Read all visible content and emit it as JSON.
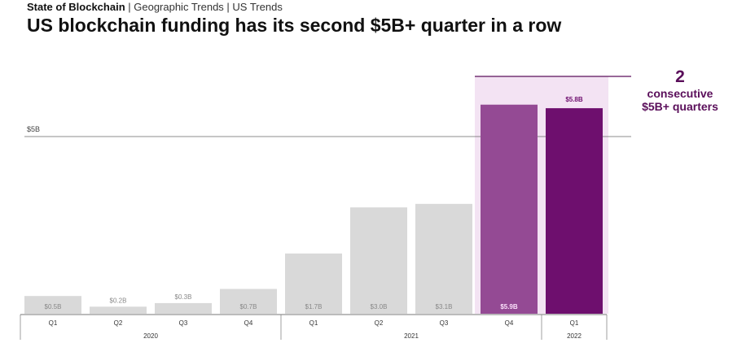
{
  "breadcrumb": {
    "section": "State of Blockchain",
    "rest": " | Geographic Trends | US Trends"
  },
  "chart_data": {
    "type": "bar",
    "title": "US blockchain funding has its second $5B+ quarter in a row",
    "categories": [
      "Q1",
      "Q2",
      "Q3",
      "Q4",
      "Q1",
      "Q2",
      "Q3",
      "Q4",
      "Q1"
    ],
    "years": [
      {
        "label": "2020",
        "span": 4
      },
      {
        "label": "2021",
        "span": 4
      },
      {
        "label": "2022",
        "span": 1
      }
    ],
    "values": [
      0.5,
      0.2,
      0.3,
      0.7,
      1.7,
      3.0,
      3.1,
      5.9,
      5.8
    ],
    "labels": [
      "$0.5B",
      "$0.2B",
      "$0.3B",
      "$0.7B",
      "$1.7B",
      "$3.0B",
      "$3.1B",
      "$5.9B",
      "$5.8B"
    ],
    "unit": "$B",
    "ylim": [
      0,
      6.6
    ],
    "reference_line": {
      "value": 5,
      "label": "$5B"
    },
    "annotation": {
      "number": "2",
      "line1": "consecutive",
      "line2": "$5B+ quarters"
    },
    "colors": {
      "default": "#d9d9d9",
      "q4_2021": "#944a94",
      "q1_2022": "#6e0f6e",
      "highlight": "#f3e3f3",
      "annotation": "#5a0e5a"
    }
  }
}
